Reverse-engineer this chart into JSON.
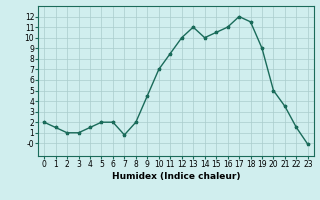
{
  "x": [
    0,
    1,
    2,
    3,
    4,
    5,
    6,
    7,
    8,
    9,
    10,
    11,
    12,
    13,
    14,
    15,
    16,
    17,
    18,
    19,
    20,
    21,
    22,
    23
  ],
  "y": [
    2,
    1.5,
    1,
    1,
    1.5,
    2,
    2,
    0.8,
    2,
    4.5,
    7,
    8.5,
    10,
    11,
    10,
    10.5,
    11,
    12,
    11.5,
    9,
    5,
    3.5,
    1.5,
    -0.1
  ],
  "line_color": "#1a6b5a",
  "marker": "*",
  "marker_size": 2.5,
  "bg_color": "#d0eeee",
  "grid_color": "#aacccc",
  "xlabel": "Humidex (Indice chaleur)",
  "xlim": [
    -0.5,
    23.5
  ],
  "ylim": [
    -1.2,
    13
  ],
  "yticks": [
    0,
    1,
    2,
    3,
    4,
    5,
    6,
    7,
    8,
    9,
    10,
    11,
    12
  ],
  "ytick_labels": [
    "-0",
    "1",
    "2",
    "3",
    "4",
    "5",
    "6",
    "7",
    "8",
    "9",
    "10",
    "11",
    "12"
  ],
  "xticks": [
    0,
    1,
    2,
    3,
    4,
    5,
    6,
    7,
    8,
    9,
    10,
    11,
    12,
    13,
    14,
    15,
    16,
    17,
    18,
    19,
    20,
    21,
    22,
    23
  ],
  "xlabel_fontsize": 6.5,
  "tick_fontsize": 5.5,
  "linewidth": 1.0,
  "spine_color": "#1a6b5a"
}
